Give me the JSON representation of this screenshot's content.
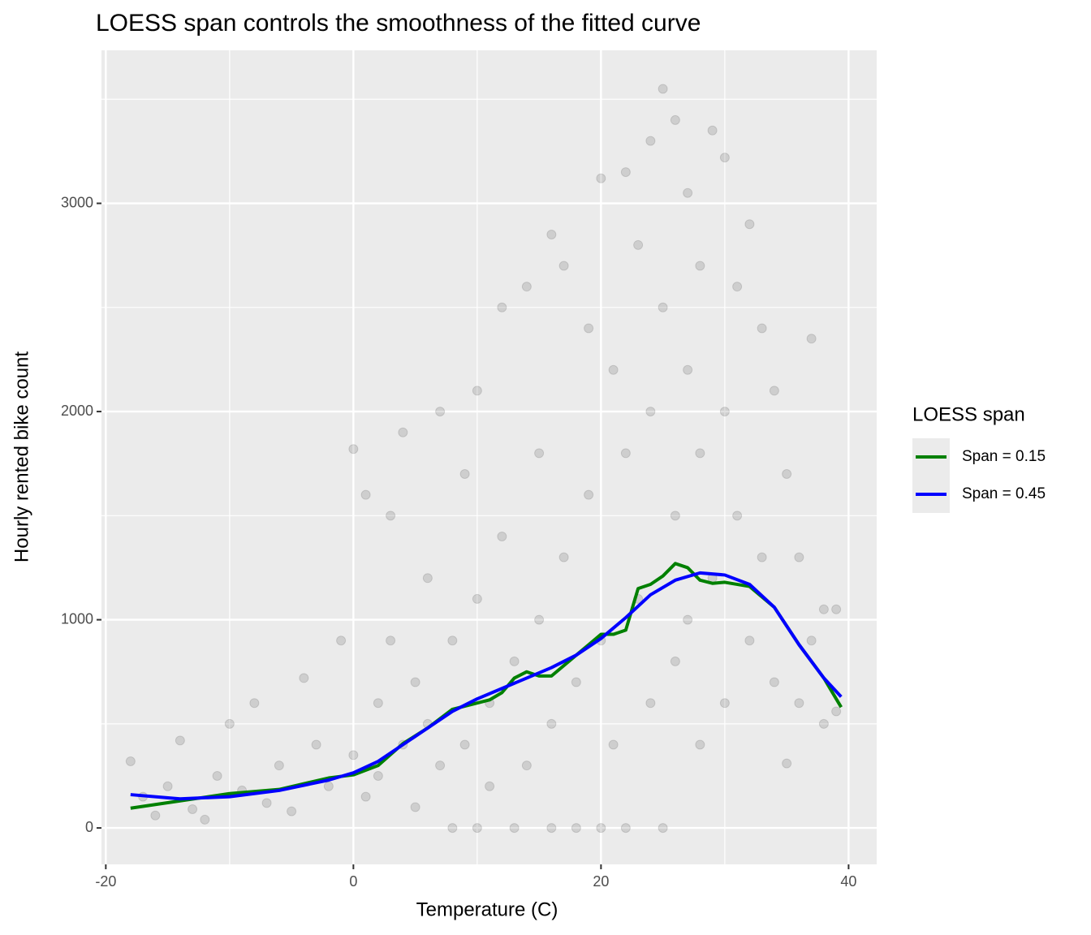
{
  "chart_data": {
    "type": "scatter",
    "title": "LOESS span controls the smoothness of the fitted curve",
    "x_label": "Temperature (C)",
    "y_label": "Hourly rented bike count",
    "legend_title": "LOESS span",
    "legend_position": "right",
    "grid": true,
    "xlim": [
      -20.35,
      42.27
    ],
    "ylim": [
      -175,
      3735
    ],
    "xticks": [
      -20,
      0,
      20,
      40
    ],
    "yticks": [
      0,
      1000,
      2000,
      3000
    ],
    "minor_xticks": [
      -10,
      10,
      30
    ],
    "minor_yticks": [
      500,
      1500,
      2500,
      3500
    ],
    "points": {
      "color": "#000000",
      "x": [
        -18,
        -17,
        -16,
        -15,
        -14,
        -13,
        -12,
        -11,
        -10,
        -9,
        -8,
        -7,
        -6,
        -5,
        -4,
        -3,
        -2,
        -1,
        0,
        0,
        1,
        1,
        2,
        2,
        3,
        3,
        4,
        4,
        5,
        5,
        6,
        6,
        7,
        7,
        8,
        8,
        9,
        9,
        10,
        10,
        10,
        11,
        11,
        12,
        12,
        13,
        13,
        14,
        14,
        15,
        15,
        16,
        16,
        16,
        17,
        17,
        18,
        18,
        19,
        19,
        20,
        20,
        20,
        21,
        21,
        22,
        22,
        22,
        23,
        23,
        24,
        24,
        24,
        25,
        25,
        25,
        26,
        26,
        26,
        27,
        27,
        27,
        28,
        28,
        28,
        29,
        29,
        30,
        30,
        30,
        31,
        31,
        32,
        32,
        33,
        33,
        34,
        34,
        35,
        35,
        36,
        36,
        37,
        37,
        38,
        38,
        39,
        39
      ],
      "values": [
        320,
        150,
        60,
        200,
        420,
        90,
        40,
        250,
        500,
        180,
        600,
        120,
        300,
        80,
        720,
        400,
        200,
        900,
        1820,
        350,
        150,
        1600,
        600,
        250,
        1500,
        900,
        400,
        1900,
        700,
        100,
        1200,
        500,
        2000,
        300,
        0,
        900,
        1700,
        400,
        0,
        2100,
        1100,
        600,
        200,
        2500,
        1400,
        0,
        800,
        2600,
        300,
        1800,
        1000,
        0,
        2850,
        500,
        2700,
        1300,
        0,
        700,
        2400,
        1600,
        0,
        3120,
        900,
        2200,
        400,
        3150,
        1800,
        0,
        2800,
        1100,
        3300,
        2000,
        600,
        3550,
        2500,
        0,
        3400,
        1500,
        800,
        3050,
        2200,
        1000,
        2700,
        1800,
        400,
        3350,
        1200,
        3220,
        2000,
        600,
        2600,
        1500,
        2900,
        900,
        2400,
        1300,
        2100,
        700,
        1700,
        310,
        1300,
        600,
        2350,
        900,
        1050,
        500,
        1050,
        560
      ]
    },
    "series": [
      {
        "name": "Span = 0.15",
        "color": "#008000",
        "x": [
          -18,
          -14,
          -10,
          -6,
          -2,
          0,
          2,
          4,
          6,
          8,
          10,
          11,
          12,
          13,
          14,
          15,
          16,
          18,
          19,
          20,
          21,
          22,
          23,
          24,
          25,
          26,
          27,
          28,
          29,
          30,
          32,
          34,
          36,
          38,
          39.4
        ],
        "values": [
          95,
          130,
          165,
          185,
          240,
          255,
          300,
          405,
          480,
          570,
          600,
          615,
          650,
          720,
          750,
          730,
          730,
          830,
          880,
          930,
          930,
          950,
          1150,
          1170,
          1210,
          1270,
          1250,
          1190,
          1175,
          1180,
          1160,
          1060,
          880,
          720,
          580
        ]
      },
      {
        "name": "Span = 0.45",
        "color": "#0000ff",
        "x": [
          -18,
          -14,
          -10,
          -6,
          -2,
          0,
          2,
          4,
          6,
          8,
          10,
          12,
          14,
          16,
          18,
          20,
          22,
          24,
          26,
          28,
          30,
          32,
          34,
          36,
          38,
          39.4
        ],
        "values": [
          160,
          140,
          150,
          180,
          230,
          265,
          320,
          400,
          480,
          560,
          620,
          670,
          720,
          770,
          830,
          910,
          1010,
          1120,
          1190,
          1225,
          1215,
          1170,
          1060,
          880,
          720,
          630
        ]
      }
    ]
  }
}
